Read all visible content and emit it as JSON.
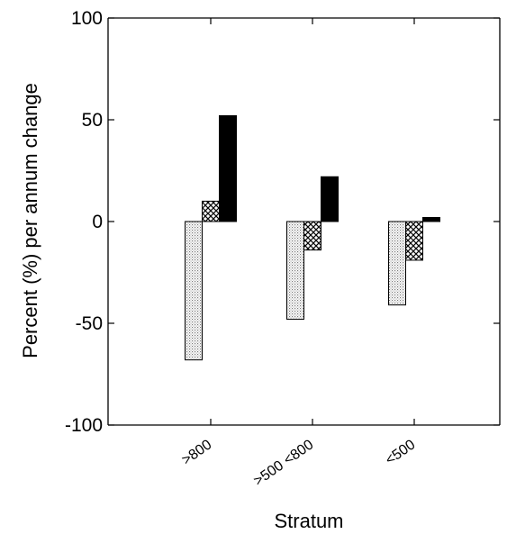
{
  "chart_data": {
    "type": "bar",
    "title": "",
    "xlabel": "Stratum",
    "ylabel": "Percent (%) per annum change",
    "ylim": [
      -100,
      100
    ],
    "yticks": [
      100,
      50,
      0,
      -50,
      -100
    ],
    "ytick_labels": [
      "100",
      "50",
      "0",
      "-50",
      "-100"
    ],
    "categories": [
      ">800",
      ">500 <800",
      "<500"
    ],
    "series": [
      {
        "fill": "stipple",
        "color": "#e6e6e6",
        "values": [
          -68,
          -48,
          -41
        ]
      },
      {
        "fill": "crosshatch",
        "color": "#000000",
        "values": [
          10,
          -14,
          -19
        ]
      },
      {
        "fill": "solid",
        "color": "#000000",
        "values": [
          52,
          22,
          2
        ]
      }
    ],
    "grid": false,
    "legend": "none",
    "category_label_rotation": -35
  }
}
